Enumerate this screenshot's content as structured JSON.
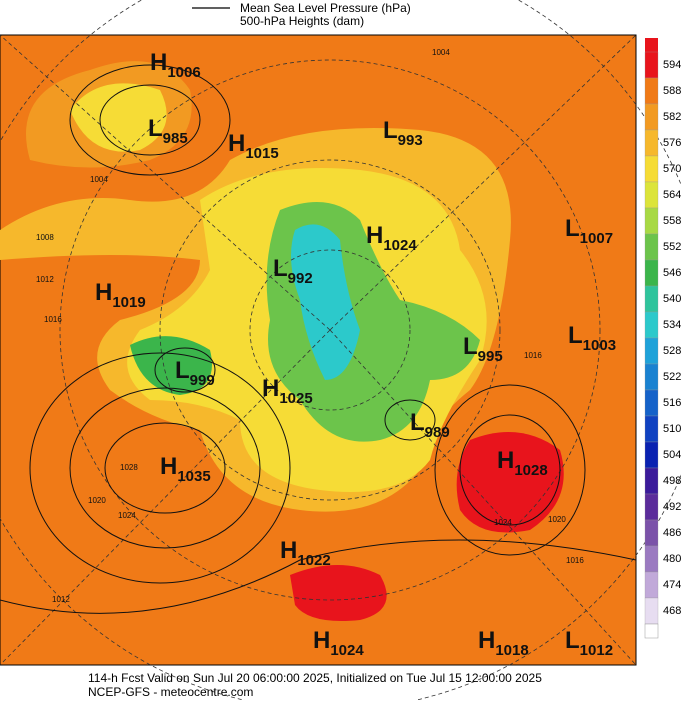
{
  "legend": {
    "mslp": "Mean Sea Level Pressure (hPa)",
    "heights": "500-hPa Heights (dam)"
  },
  "centers": [
    {
      "letter": "H",
      "value": 1006
    },
    {
      "letter": "L",
      "value": 985
    },
    {
      "letter": "H",
      "value": 1015
    },
    {
      "letter": "L",
      "value": 993
    },
    {
      "letter": "H",
      "value": 1024
    },
    {
      "letter": "L",
      "value": 1007
    },
    {
      "letter": "L",
      "value": 992
    },
    {
      "letter": "H",
      "value": 1019
    },
    {
      "letter": "L",
      "value": 995
    },
    {
      "letter": "L",
      "value": 1003
    },
    {
      "letter": "L",
      "value": 999
    },
    {
      "letter": "H",
      "value": 1025
    },
    {
      "letter": "L",
      "value": 989
    },
    {
      "letter": "H",
      "value": 1035
    },
    {
      "letter": "H",
      "value": 1028
    },
    {
      "letter": "H",
      "value": 1022
    },
    {
      "letter": "H",
      "value": 1024
    },
    {
      "letter": "H",
      "value": 1018
    },
    {
      "letter": "L",
      "value": 1012
    }
  ],
  "isobar_labels": [
    1004,
    1004,
    1008,
    1012,
    1016,
    1020,
    1024,
    1028,
    1016,
    1024,
    1020,
    1016,
    1012
  ],
  "colorbar": {
    "levels": [
      594,
      588,
      582,
      576,
      570,
      564,
      558,
      552,
      546,
      540,
      534,
      528,
      522,
      516,
      510,
      504,
      498,
      492,
      486,
      480,
      474,
      468
    ],
    "colors": [
      "#e8141c",
      "#f07a17",
      "#f29a22",
      "#f6b82c",
      "#f6dc36",
      "#dce43a",
      "#a8d944",
      "#6cc44b",
      "#3bb54b",
      "#2fc49c",
      "#2cc9cb",
      "#1fa2d9",
      "#1a82d1",
      "#1562c9",
      "#1042c1",
      "#0a22b1",
      "#3b1b9b",
      "#5b2c9b",
      "#7b52a9",
      "#9b7ac1",
      "#c1a9d9",
      "#e7ddf1"
    ]
  },
  "footer": {
    "line1": "114-h Fcst Valid on Sun Jul 20 06:00:00 2025, Initialized on Tue Jul 15 12:00:00 2025",
    "line2": "NCEP-GFS  - meteocentre.com"
  }
}
